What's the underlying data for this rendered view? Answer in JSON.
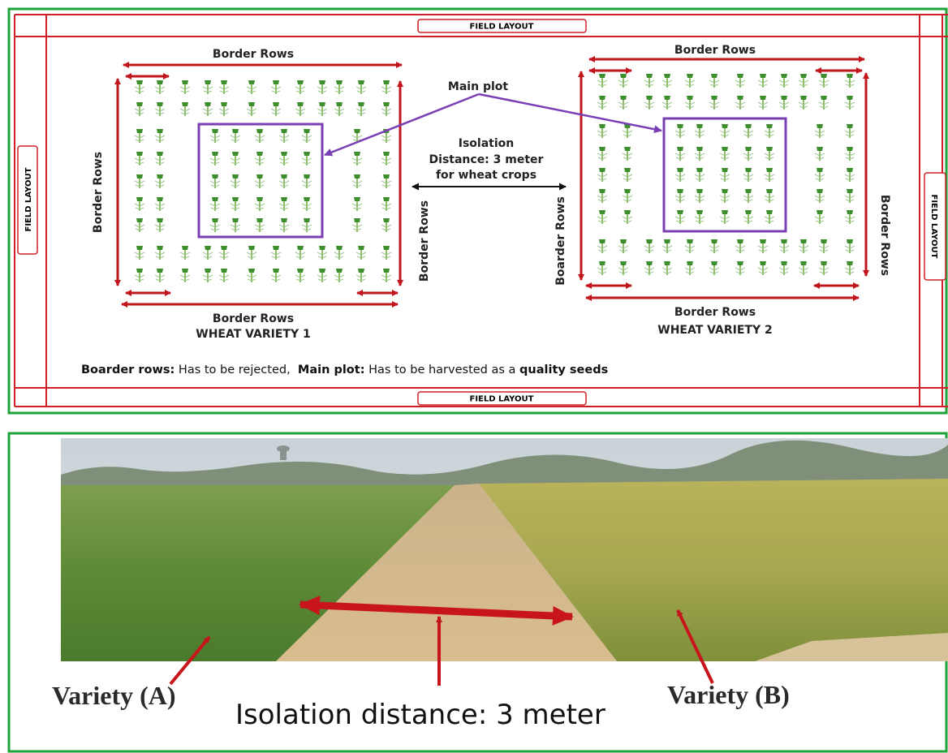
{
  "layout_diagram": {
    "field_layout_labels": [
      "FIELD LAYOUT",
      "FIELD LAYOUT",
      "FIELD LAYOUT",
      "FIELD LAYOUT"
    ],
    "plots": [
      {
        "top": "Border Rows",
        "left": "Border Rows",
        "right": "Border Rows",
        "bottom": "Border Rows",
        "variety": "WHEAT VARIETY 1"
      },
      {
        "top": "Border Rows",
        "left": "Boarder Rows",
        "right": "Border Rows",
        "bottom": "Border Rows",
        "variety": "WHEAT VARIETY 2"
      }
    ],
    "main_plot_label": "Main plot",
    "isolation_label": [
      "Isolation",
      "Distance: 3 meter",
      "for wheat crops"
    ],
    "note": [
      "Boarder rows:",
      " Has to be rejected,  ",
      "Main plot:",
      " Has to be harvested as a ",
      "quality seeds"
    ]
  },
  "photo_panel": {
    "variety_a": "Variety (A)",
    "isolation": "Isolation distance: 3 meter",
    "variety_b": "Variety (B)"
  }
}
